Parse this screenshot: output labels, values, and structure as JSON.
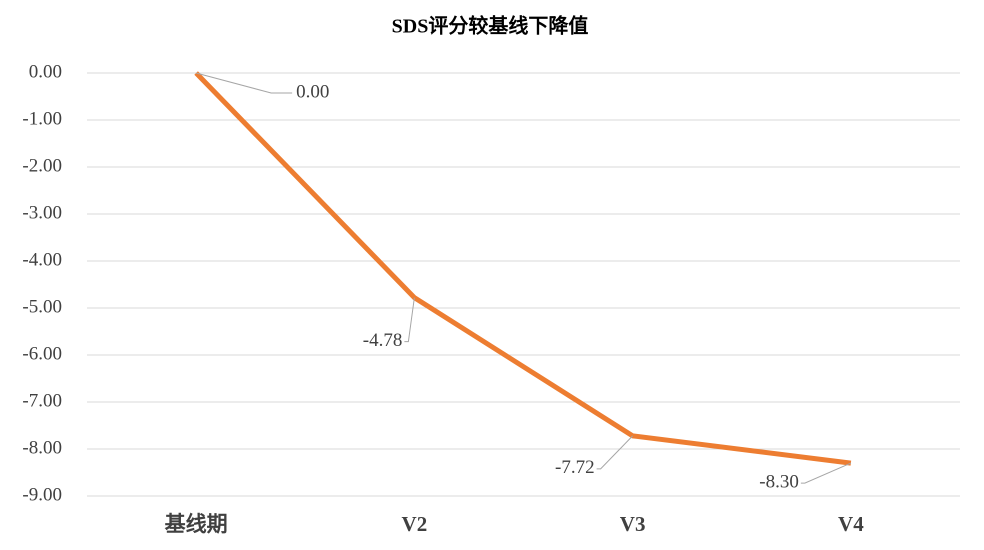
{
  "chart_data": {
    "type": "line",
    "title": "SDS评分较基线下降值",
    "categories": [
      "基线期",
      "V2",
      "V3",
      "V4"
    ],
    "series": [
      {
        "name": "SDS评分较基线下降值",
        "color": "#ed7d31",
        "values": [
          0,
          -4.78,
          -7.72,
          -8.3
        ],
        "value_labels": [
          "0.00",
          "-4.78",
          "-7.72",
          "-8.30"
        ]
      }
    ],
    "ylim": [
      -9,
      0
    ],
    "yticks": [
      {
        "value": 0,
        "label": "0.00"
      },
      {
        "value": -1,
        "label": "-1.00"
      },
      {
        "value": -2,
        "label": "-2.00"
      },
      {
        "value": -3,
        "label": "-3.00"
      },
      {
        "value": -4,
        "label": "-4.00"
      },
      {
        "value": -5,
        "label": "-5.00"
      },
      {
        "value": -6,
        "label": "-6.00"
      },
      {
        "value": -7,
        "label": "-7.00"
      },
      {
        "value": -8,
        "label": "-8.00"
      },
      {
        "value": -9,
        "label": "-9.00"
      }
    ],
    "grid": true
  }
}
